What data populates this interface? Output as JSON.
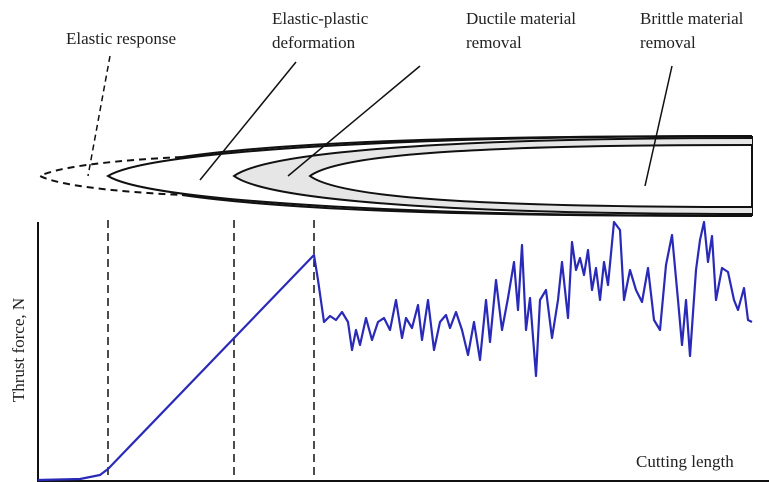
{
  "labels": [
    {
      "lines": [
        "Elastic response"
      ]
    },
    {
      "lines": [
        "Elastic-plastic",
        "deformation"
      ]
    },
    {
      "lines": [
        "Ductile material",
        "removal"
      ]
    },
    {
      "lines": [
        "Brittle material",
        "removal"
      ]
    }
  ],
  "axes": {
    "y_label": "Thrust force, N",
    "x_label": "Cutting length"
  }
}
